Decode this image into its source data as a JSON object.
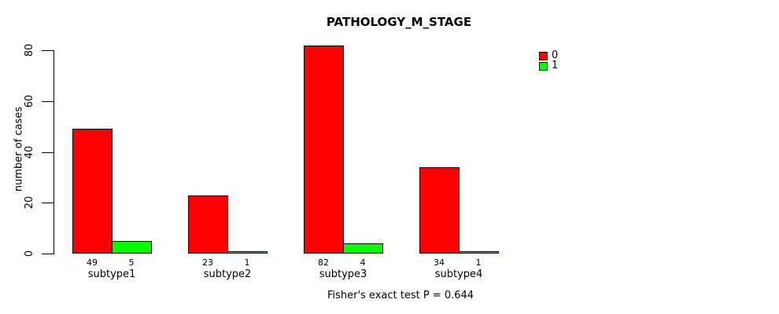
{
  "chart_data": {
    "type": "bar",
    "title": "PATHOLOGY_M_STAGE",
    "ylabel": "number of cases",
    "xlabel": "",
    "categories": [
      "subtype1",
      "subtype2",
      "subtype3",
      "subtype4"
    ],
    "series": [
      {
        "name": "0",
        "color": "#FF0000",
        "values": [
          49,
          23,
          82,
          34
        ]
      },
      {
        "name": "1",
        "color": "#00FF00",
        "values": [
          5,
          1,
          4,
          1
        ]
      }
    ],
    "yticks": [
      0,
      20,
      40,
      60,
      80
    ],
    "ylim": [
      0,
      86
    ],
    "grid": false,
    "show_bar_values": true,
    "bar_border_color": "#000000",
    "legend_position": "top-right",
    "legend_entries": [
      {
        "label": "0",
        "color": "#FF0000"
      },
      {
        "label": "1",
        "color": "#00FF00"
      }
    ],
    "annotation": "Fisher's exact test P = 0.644"
  }
}
